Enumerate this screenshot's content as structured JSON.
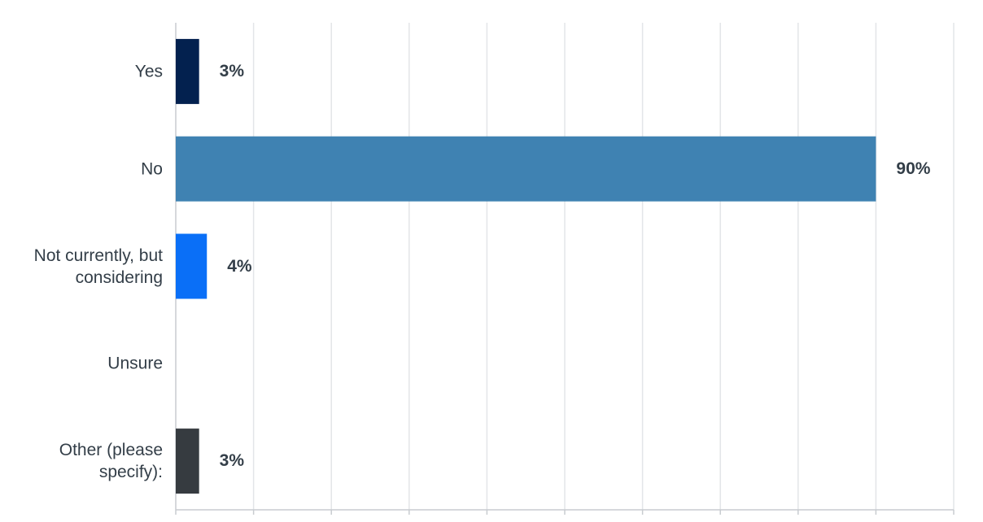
{
  "chart_data": {
    "type": "bar",
    "orientation": "horizontal",
    "categories": [
      "Yes",
      "No",
      "Not currently, but considering",
      "Unsure",
      "Other (please specify):"
    ],
    "values": [
      3,
      90,
      4,
      0,
      3
    ],
    "value_labels": [
      "3%",
      "90%",
      "4%",
      null,
      "3%"
    ],
    "colors": [
      "#03214f",
      "#3f82b2",
      "#0a6ff7",
      "#888888",
      "#363b40"
    ],
    "xlim": [
      0,
      100
    ],
    "xticks": [
      0,
      10,
      20,
      30,
      40,
      50,
      60,
      70,
      80,
      90,
      100
    ],
    "grid": true
  }
}
